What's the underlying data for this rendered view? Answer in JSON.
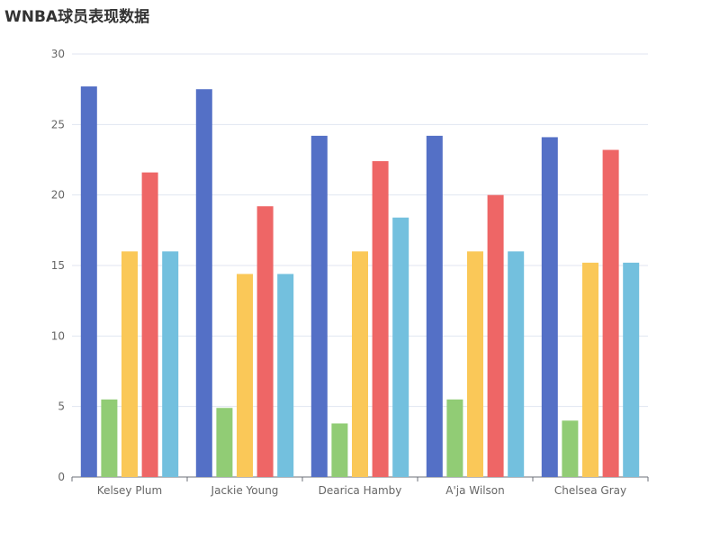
{
  "chart_data": {
    "type": "bar",
    "title": "WNBA球员表现数据",
    "categories": [
      "Kelsey Plum",
      "Jackie Young",
      "Dearica Hamby",
      "A'ja Wilson",
      "Chelsea Gray"
    ],
    "series": [
      {
        "color": "#5470c6",
        "values": [
          27.7,
          27.5,
          24.2,
          24.2,
          24.1
        ]
      },
      {
        "color": "#91cc75",
        "values": [
          5.5,
          4.9,
          3.8,
          5.5,
          4.0
        ]
      },
      {
        "color": "#fac858",
        "values": [
          16.0,
          14.4,
          16.0,
          16.0,
          15.2
        ]
      },
      {
        "color": "#ee6666",
        "values": [
          21.6,
          19.2,
          22.4,
          20.0,
          23.2
        ]
      },
      {
        "color": "#73c0de",
        "values": [
          16.0,
          14.4,
          18.4,
          16.0,
          15.2
        ]
      }
    ],
    "ylim": [
      0,
      30
    ],
    "yticks": [
      0,
      5,
      10,
      15,
      20,
      25,
      30
    ],
    "grid": true,
    "xlabel": "",
    "ylabel": ""
  }
}
